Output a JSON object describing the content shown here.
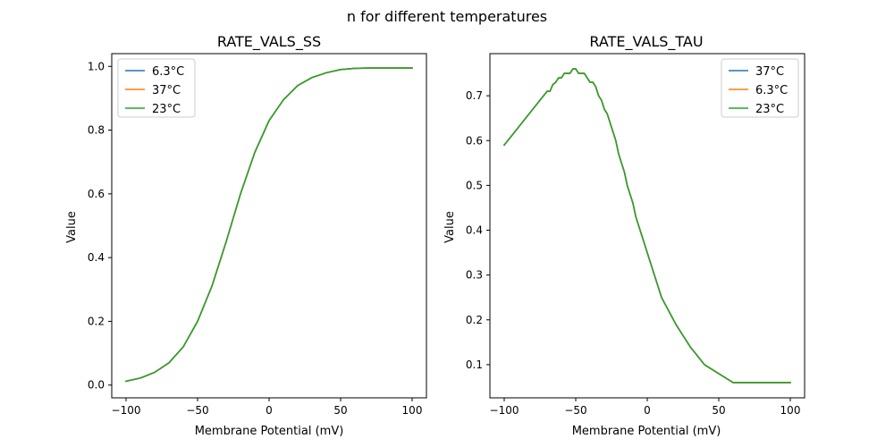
{
  "figure": {
    "title": "n for different temperatures"
  },
  "colors": {
    "blue": "#1f77b4",
    "orange": "#ff7f0e",
    "green": "#2ca02c"
  },
  "chart_data": [
    {
      "type": "line",
      "title": "RATE_VALS_SS",
      "xlabel": "Membrane Potential (mV)",
      "ylabel": "Value",
      "xlim": [
        -110,
        110
      ],
      "ylim": [
        -0.04,
        1.04
      ],
      "xticks": [
        -100,
        -50,
        0,
        50,
        100
      ],
      "xtick_labels": [
        "−100",
        "−50",
        "0",
        "50",
        "100"
      ],
      "yticks": [
        0.0,
        0.2,
        0.4,
        0.6,
        0.8,
        1.0
      ],
      "ytick_labels": [
        "0.0",
        "0.2",
        "0.4",
        "0.6",
        "0.8",
        "1.0"
      ],
      "grid": false,
      "legend_position": "upper-left",
      "x": [
        -100,
        -90,
        -80,
        -70,
        -60,
        -50,
        -40,
        -30,
        -20,
        -10,
        0,
        10,
        20,
        30,
        40,
        50,
        60,
        70,
        80,
        90,
        100
      ],
      "series": [
        {
          "name": "6.3°C",
          "color": "#1f77b4",
          "values": [
            0.012,
            0.022,
            0.04,
            0.07,
            0.12,
            0.2,
            0.31,
            0.45,
            0.6,
            0.73,
            0.83,
            0.895,
            0.94,
            0.965,
            0.98,
            0.99,
            0.994,
            0.995,
            0.995,
            0.995,
            0.995
          ]
        },
        {
          "name": "37°C",
          "color": "#ff7f0e",
          "values": [
            0.012,
            0.022,
            0.04,
            0.07,
            0.12,
            0.2,
            0.31,
            0.45,
            0.6,
            0.73,
            0.83,
            0.895,
            0.94,
            0.965,
            0.98,
            0.99,
            0.994,
            0.995,
            0.995,
            0.995,
            0.995
          ]
        },
        {
          "name": "23°C",
          "color": "#2ca02c",
          "values": [
            0.012,
            0.022,
            0.04,
            0.07,
            0.12,
            0.2,
            0.31,
            0.45,
            0.6,
            0.73,
            0.83,
            0.895,
            0.94,
            0.965,
            0.98,
            0.99,
            0.994,
            0.995,
            0.995,
            0.995,
            0.995
          ]
        }
      ]
    },
    {
      "type": "line",
      "title": "RATE_VALS_TAU",
      "xlabel": "Membrane Potential (mV)",
      "ylabel": "Value",
      "xlim": [
        -110,
        110
      ],
      "ylim": [
        0.026,
        0.794
      ],
      "xticks": [
        -100,
        -50,
        0,
        50,
        100
      ],
      "xtick_labels": [
        "−100",
        "−50",
        "0",
        "50",
        "100"
      ],
      "yticks": [
        0.1,
        0.2,
        0.3,
        0.4,
        0.5,
        0.6,
        0.7
      ],
      "ytick_labels": [
        "0.1",
        "0.2",
        "0.3",
        "0.4",
        "0.5",
        "0.6",
        "0.7"
      ],
      "grid": false,
      "legend_position": "upper-right",
      "x": [
        -100,
        -90,
        -80,
        -75,
        -70,
        -68,
        -66,
        -64,
        -62,
        -60,
        -58,
        -56,
        -54,
        -52,
        -50,
        -48,
        -46,
        -44,
        -42,
        -40,
        -38,
        -36,
        -34,
        -32,
        -30,
        -28,
        -26,
        -24,
        -22,
        -20,
        -18,
        -16,
        -14,
        -12,
        -10,
        -8,
        -6,
        -4,
        -2,
        0,
        10,
        20,
        30,
        40,
        50,
        60,
        70,
        80,
        90,
        100
      ],
      "series": [
        {
          "name": "37°C",
          "color": "#1f77b4",
          "values": [
            0.59,
            0.63,
            0.67,
            0.69,
            0.71,
            0.71,
            0.725,
            0.73,
            0.74,
            0.74,
            0.75,
            0.75,
            0.75,
            0.76,
            0.76,
            0.75,
            0.75,
            0.75,
            0.74,
            0.73,
            0.73,
            0.72,
            0.7,
            0.69,
            0.67,
            0.66,
            0.64,
            0.62,
            0.6,
            0.57,
            0.55,
            0.53,
            0.5,
            0.48,
            0.46,
            0.43,
            0.41,
            0.39,
            0.37,
            0.35,
            0.25,
            0.19,
            0.14,
            0.1,
            0.08,
            0.06,
            0.06,
            0.06,
            0.06,
            0.06
          ]
        },
        {
          "name": "6.3°C",
          "color": "#ff7f0e",
          "values": [
            0.59,
            0.63,
            0.67,
            0.69,
            0.71,
            0.71,
            0.725,
            0.73,
            0.74,
            0.74,
            0.75,
            0.75,
            0.75,
            0.76,
            0.76,
            0.75,
            0.75,
            0.75,
            0.74,
            0.73,
            0.73,
            0.72,
            0.7,
            0.69,
            0.67,
            0.66,
            0.64,
            0.62,
            0.6,
            0.57,
            0.55,
            0.53,
            0.5,
            0.48,
            0.46,
            0.43,
            0.41,
            0.39,
            0.37,
            0.35,
            0.25,
            0.19,
            0.14,
            0.1,
            0.08,
            0.06,
            0.06,
            0.06,
            0.06,
            0.06
          ]
        },
        {
          "name": "23°C",
          "color": "#2ca02c",
          "values": [
            0.59,
            0.63,
            0.67,
            0.69,
            0.71,
            0.71,
            0.725,
            0.73,
            0.74,
            0.74,
            0.75,
            0.75,
            0.75,
            0.76,
            0.76,
            0.75,
            0.75,
            0.75,
            0.74,
            0.73,
            0.73,
            0.72,
            0.7,
            0.69,
            0.67,
            0.66,
            0.64,
            0.62,
            0.6,
            0.57,
            0.55,
            0.53,
            0.5,
            0.48,
            0.46,
            0.43,
            0.41,
            0.39,
            0.37,
            0.35,
            0.25,
            0.19,
            0.14,
            0.1,
            0.08,
            0.06,
            0.06,
            0.06,
            0.06,
            0.06
          ]
        }
      ]
    }
  ]
}
